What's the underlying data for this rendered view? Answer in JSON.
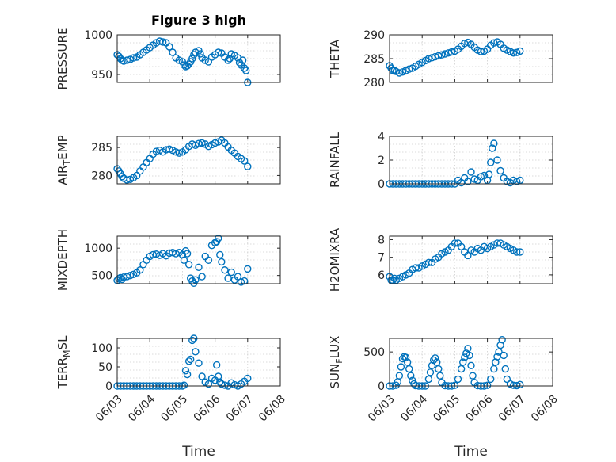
{
  "figure_title": "Figure 3 high",
  "x_axis_label": "Time",
  "x_tick_labels": [
    "06/03",
    "06/04",
    "06/05",
    "06/06",
    "06/07",
    "06/08"
  ],
  "marker_color": "#0072BD",
  "chart_data": [
    {
      "type": "scatter",
      "ylabel": "PRESSURE",
      "xlim": [
        "06/03",
        "06/08"
      ],
      "ylim": [
        940,
        1000
      ],
      "yticks": [
        950,
        1000
      ],
      "x_days": [
        0.0,
        0.05,
        0.1,
        0.15,
        0.2,
        0.3,
        0.4,
        0.5,
        0.6,
        0.7,
        0.8,
        0.9,
        1.0,
        1.1,
        1.2,
        1.3,
        1.4,
        1.5,
        1.6,
        1.7,
        1.8,
        1.9,
        2.0,
        2.05,
        2.1,
        2.15,
        2.2,
        2.25,
        2.3,
        2.35,
        2.4,
        2.5,
        2.55,
        2.6,
        2.7,
        2.8,
        2.9,
        3.0,
        3.1,
        3.2,
        3.3,
        3.4,
        3.45,
        3.5,
        3.6,
        3.7,
        3.75,
        3.8,
        3.85,
        3.9,
        3.95,
        4.0
      ],
      "y": [
        975,
        973,
        970,
        968,
        967,
        968,
        969,
        971,
        972,
        975,
        978,
        981,
        984,
        987,
        990,
        992,
        991,
        990,
        985,
        978,
        971,
        968,
        966,
        962,
        960,
        961,
        963,
        966,
        970,
        975,
        978,
        980,
        976,
        971,
        968,
        966,
        972,
        975,
        978,
        977,
        972,
        968,
        970,
        976,
        974,
        971,
        965,
        962,
        968,
        958,
        955,
        940
      ]
    },
    {
      "type": "scatter",
      "ylabel": "THETA",
      "xlim": [
        "06/03",
        "06/08"
      ],
      "ylim": [
        280,
        290
      ],
      "yticks": [
        280,
        285,
        290
      ],
      "x_days": [
        0.0,
        0.05,
        0.1,
        0.15,
        0.2,
        0.3,
        0.4,
        0.5,
        0.6,
        0.7,
        0.8,
        0.9,
        1.0,
        1.1,
        1.2,
        1.3,
        1.4,
        1.5,
        1.6,
        1.7,
        1.8,
        1.9,
        2.0,
        2.1,
        2.2,
        2.3,
        2.4,
        2.5,
        2.6,
        2.7,
        2.8,
        2.9,
        3.0,
        3.1,
        3.2,
        3.3,
        3.4,
        3.5,
        3.6,
        3.7,
        3.8,
        3.9,
        4.0
      ],
      "y": [
        283.5,
        283.0,
        282.5,
        282.5,
        282.3,
        282.0,
        282.2,
        282.5,
        282.8,
        283.0,
        283.4,
        283.8,
        284.2,
        284.6,
        285.0,
        285.2,
        285.4,
        285.6,
        285.8,
        286.0,
        286.2,
        286.4,
        286.6,
        287.0,
        287.6,
        288.2,
        288.4,
        288.0,
        287.4,
        286.8,
        286.5,
        286.6,
        287.0,
        287.8,
        288.3,
        288.5,
        288.0,
        287.2,
        286.8,
        286.5,
        286.2,
        286.3,
        286.6
      ]
    },
    {
      "type": "scatter",
      "ylabel": "AIR_TEMP",
      "xlim": [
        "06/03",
        "06/08"
      ],
      "ylim": [
        278.5,
        287
      ],
      "yticks": [
        280,
        285
      ],
      "x_days": [
        0.0,
        0.05,
        0.1,
        0.15,
        0.2,
        0.3,
        0.4,
        0.5,
        0.6,
        0.7,
        0.8,
        0.9,
        1.0,
        1.1,
        1.2,
        1.3,
        1.4,
        1.5,
        1.6,
        1.7,
        1.8,
        1.9,
        2.0,
        2.1,
        2.2,
        2.3,
        2.4,
        2.5,
        2.6,
        2.7,
        2.8,
        2.9,
        3.0,
        3.1,
        3.2,
        3.3,
        3.4,
        3.5,
        3.6,
        3.7,
        3.8,
        3.9,
        4.0
      ],
      "y": [
        281.2,
        280.8,
        280.3,
        279.8,
        279.5,
        279.2,
        279.3,
        279.6,
        280.0,
        280.8,
        281.5,
        282.3,
        283.0,
        283.8,
        284.3,
        284.5,
        284.2,
        284.6,
        284.7,
        284.5,
        284.2,
        284.0,
        284.2,
        284.6,
        285.2,
        285.6,
        285.4,
        285.7,
        285.8,
        285.6,
        285.2,
        285.5,
        285.8,
        286.0,
        286.3,
        285.8,
        285.1,
        284.5,
        284.0,
        283.4,
        283.0,
        282.6,
        281.6
      ]
    },
    {
      "type": "scatter",
      "ylabel": "RAINFALL",
      "xlim": [
        "06/03",
        "06/08"
      ],
      "ylim": [
        0,
        4
      ],
      "yticks": [
        0,
        2,
        4
      ],
      "x_days": [
        0.0,
        0.1,
        0.2,
        0.3,
        0.4,
        0.5,
        0.6,
        0.7,
        0.8,
        0.9,
        1.0,
        1.1,
        1.2,
        1.3,
        1.4,
        1.5,
        1.6,
        1.7,
        1.8,
        1.9,
        2.0,
        2.1,
        2.2,
        2.3,
        2.4,
        2.5,
        2.6,
        2.7,
        2.8,
        2.9,
        3.0,
        3.05,
        3.1,
        3.15,
        3.2,
        3.3,
        3.4,
        3.5,
        3.6,
        3.7,
        3.8,
        3.9,
        4.0
      ],
      "y": [
        0,
        0,
        0,
        0,
        0,
        0,
        0,
        0,
        0,
        0,
        0,
        0,
        0,
        0,
        0,
        0,
        0,
        0,
        0,
        0,
        0,
        0.3,
        0.1,
        0.5,
        0.2,
        1.0,
        0.4,
        0.3,
        0.6,
        0.7,
        0.3,
        0.8,
        1.8,
        3.0,
        3.4,
        2.0,
        1.1,
        0.5,
        0.2,
        0.1,
        0.3,
        0.2,
        0.3
      ]
    },
    {
      "type": "scatter",
      "ylabel": "MIXDEPTH",
      "xlim": [
        "06/03",
        "06/08"
      ],
      "ylim": [
        350,
        1220
      ],
      "yticks": [
        500,
        1000
      ],
      "x_days": [
        0.0,
        0.05,
        0.1,
        0.15,
        0.2,
        0.3,
        0.4,
        0.5,
        0.6,
        0.7,
        0.8,
        0.9,
        1.0,
        1.1,
        1.2,
        1.3,
        1.4,
        1.5,
        1.6,
        1.7,
        1.8,
        1.9,
        2.0,
        2.05,
        2.1,
        2.15,
        2.2,
        2.25,
        2.3,
        2.35,
        2.4,
        2.5,
        2.6,
        2.7,
        2.8,
        2.9,
        3.0,
        3.05,
        3.1,
        3.15,
        3.2,
        3.3,
        3.4,
        3.5,
        3.6,
        3.7,
        3.8,
        3.9,
        4.0
      ],
      "y": [
        410,
        440,
        460,
        430,
        470,
        480,
        500,
        520,
        550,
        600,
        700,
        780,
        850,
        880,
        890,
        870,
        900,
        860,
        910,
        920,
        900,
        920,
        880,
        780,
        950,
        900,
        700,
        450,
        400,
        360,
        420,
        650,
        480,
        850,
        780,
        1050,
        1100,
        1120,
        1180,
        880,
        750,
        600,
        450,
        560,
        420,
        480,
        380,
        400,
        620
      ]
    },
    {
      "type": "scatter",
      "ylabel": "H2OMIXRA",
      "xlim": [
        "06/03",
        "06/08"
      ],
      "ylim": [
        5.5,
        8.2
      ],
      "yticks": [
        6,
        7,
        8
      ],
      "x_days": [
        0.0,
        0.05,
        0.1,
        0.15,
        0.2,
        0.3,
        0.4,
        0.5,
        0.6,
        0.7,
        0.8,
        0.9,
        1.0,
        1.1,
        1.2,
        1.3,
        1.4,
        1.5,
        1.6,
        1.7,
        1.8,
        1.9,
        2.0,
        2.1,
        2.2,
        2.3,
        2.4,
        2.5,
        2.6,
        2.7,
        2.8,
        2.9,
        3.0,
        3.1,
        3.2,
        3.3,
        3.4,
        3.5,
        3.6,
        3.7,
        3.8,
        3.9,
        4.0
      ],
      "y": [
        5.9,
        5.7,
        5.7,
        5.8,
        5.7,
        5.8,
        5.9,
        6.0,
        6.1,
        6.3,
        6.4,
        6.4,
        6.5,
        6.6,
        6.7,
        6.7,
        6.9,
        7.0,
        7.2,
        7.3,
        7.4,
        7.6,
        7.8,
        7.8,
        7.6,
        7.3,
        7.1,
        7.4,
        7.3,
        7.5,
        7.4,
        7.6,
        7.5,
        7.6,
        7.7,
        7.8,
        7.8,
        7.7,
        7.6,
        7.5,
        7.4,
        7.3,
        7.3
      ]
    },
    {
      "type": "scatter",
      "ylabel": "TERR_MSL",
      "xlim": [
        "06/03",
        "06/08"
      ],
      "ylim": [
        0,
        125
      ],
      "yticks": [
        0,
        50,
        100
      ],
      "x_days": [
        0.0,
        0.1,
        0.2,
        0.3,
        0.4,
        0.5,
        0.6,
        0.7,
        0.8,
        0.9,
        1.0,
        1.1,
        1.2,
        1.3,
        1.4,
        1.5,
        1.6,
        1.7,
        1.8,
        1.9,
        2.0,
        2.05,
        2.1,
        2.15,
        2.2,
        2.25,
        2.3,
        2.35,
        2.4,
        2.5,
        2.6,
        2.7,
        2.8,
        2.9,
        3.0,
        3.05,
        3.1,
        3.15,
        3.2,
        3.3,
        3.4,
        3.5,
        3.6,
        3.7,
        3.8,
        3.9,
        4.0
      ],
      "y": [
        0,
        0,
        0,
        0,
        0,
        0,
        0,
        0,
        0,
        0,
        0,
        0,
        0,
        0,
        0,
        0,
        0,
        0,
        0,
        0,
        0,
        2,
        40,
        30,
        65,
        70,
        120,
        125,
        90,
        60,
        25,
        10,
        5,
        20,
        15,
        55,
        25,
        10,
        5,
        2,
        0,
        8,
        3,
        0,
        5,
        12,
        20
      ]
    },
    {
      "type": "scatter",
      "ylabel": "SUN_FLUX",
      "xlim": [
        "06/03",
        "06/08"
      ],
      "ylim": [
        0,
        700
      ],
      "yticks": [
        0,
        500
      ],
      "x_days": [
        0.0,
        0.1,
        0.2,
        0.25,
        0.3,
        0.35,
        0.4,
        0.45,
        0.5,
        0.55,
        0.6,
        0.65,
        0.7,
        0.75,
        0.8,
        0.9,
        1.0,
        1.1,
        1.2,
        1.25,
        1.3,
        1.35,
        1.4,
        1.45,
        1.5,
        1.55,
        1.6,
        1.7,
        1.8,
        1.9,
        2.0,
        2.1,
        2.2,
        2.25,
        2.3,
        2.35,
        2.4,
        2.45,
        2.5,
        2.55,
        2.6,
        2.7,
        2.8,
        2.9,
        3.0,
        3.1,
        3.2,
        3.25,
        3.3,
        3.35,
        3.4,
        3.45,
        3.5,
        3.55,
        3.6,
        3.7,
        3.8,
        3.9,
        4.0
      ],
      "y": [
        0,
        0,
        10,
        60,
        150,
        280,
        400,
        430,
        420,
        350,
        250,
        150,
        80,
        30,
        5,
        0,
        0,
        0,
        100,
        200,
        300,
        380,
        410,
        350,
        250,
        150,
        50,
        5,
        0,
        0,
        10,
        100,
        250,
        350,
        420,
        480,
        550,
        450,
        300,
        150,
        50,
        5,
        0,
        0,
        10,
        100,
        250,
        350,
        430,
        500,
        600,
        680,
        450,
        250,
        100,
        30,
        10,
        5,
        20
      ]
    }
  ]
}
